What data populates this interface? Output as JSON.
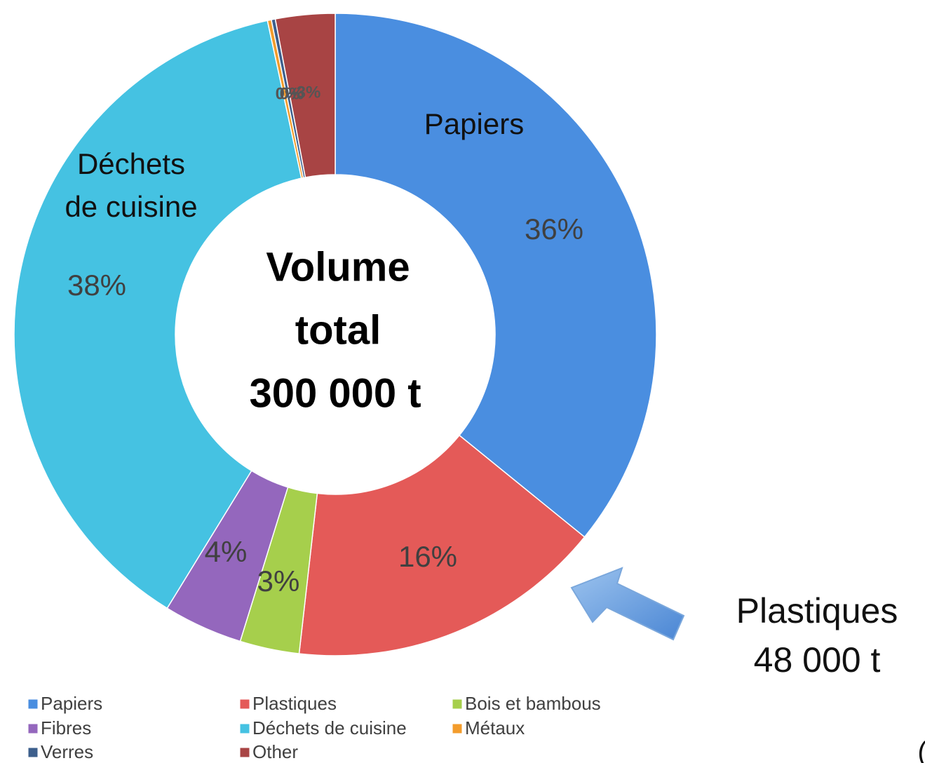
{
  "chart_data": {
    "type": "pie",
    "categories": [
      "Papiers",
      "Plastiques",
      "Bois et bambous",
      "Fibres",
      "Déchets de cuisine",
      "Métaux",
      "Verres",
      "Other"
    ],
    "values": [
      36,
      16,
      3,
      4,
      38,
      0.2,
      0.2,
      3
    ],
    "value_labels": [
      "36%",
      "16%",
      "3%",
      "4%",
      "38%",
      "0%",
      "0%",
      "3%"
    ],
    "colors": [
      "#4a8ee0",
      "#e45a58",
      "#a6cf4c",
      "#9467bd",
      "#45c2e2",
      "#f39c2c",
      "#3d5f8c",
      "#a84444"
    ],
    "legend": "bottom",
    "annotations": [
      "Papiers",
      "Déchets",
      "de cuisine",
      "Volume",
      "total",
      "300 000 t",
      "Plastiques",
      "48 000 t",
      "("
    ]
  }
}
